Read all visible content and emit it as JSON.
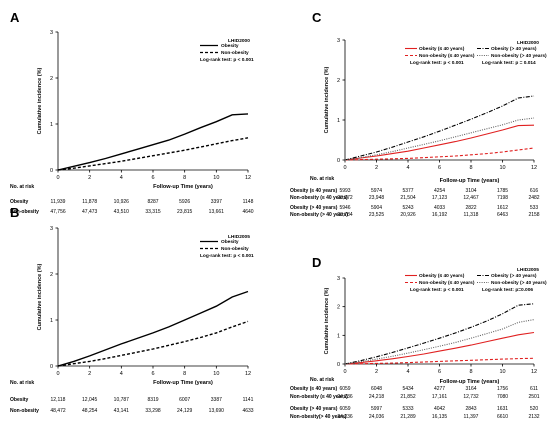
{
  "chart_data": [
    {
      "type": "line",
      "panel": "A",
      "cohort": "LHID2000",
      "xlabel": "Follow-up Time (years)",
      "ylabel": "Cumulative incidence (%)",
      "xlim": [
        0,
        12
      ],
      "ylim": [
        0,
        3
      ],
      "xticks": [
        "0",
        "2",
        "4",
        "6",
        "8",
        "10",
        "12"
      ],
      "yticks": [
        "0",
        "1",
        "2",
        "3"
      ],
      "logrank": "Log-rank test: p < 0.001",
      "risk_header": "No. at risk",
      "series": [
        {
          "name": "Obesity",
          "color": "#000000",
          "style": "solid",
          "x": [
            0,
            1,
            2,
            3,
            4,
            5,
            6,
            7,
            8,
            9,
            10,
            11,
            12
          ],
          "y": [
            0,
            0.08,
            0.16,
            0.25,
            0.35,
            0.45,
            0.55,
            0.65,
            0.78,
            0.92,
            1.05,
            1.2,
            1.22
          ]
        },
        {
          "name": "Non-obesity",
          "color": "#000000",
          "style": "dashed",
          "x": [
            0,
            1,
            2,
            3,
            4,
            5,
            6,
            7,
            8,
            9,
            10,
            11,
            12
          ],
          "y": [
            0,
            0.04,
            0.09,
            0.14,
            0.19,
            0.25,
            0.31,
            0.37,
            0.43,
            0.5,
            0.57,
            0.64,
            0.7
          ]
        }
      ],
      "risk_table": [
        {
          "label": "Obesity",
          "values": [
            "11,939",
            "11,878",
            "10,926",
            "8287",
            "5926",
            "3397",
            "1148"
          ]
        },
        {
          "label": "Non-obesity",
          "values": [
            "47,756",
            "47,473",
            "43,510",
            "33,315",
            "23,815",
            "13,661",
            "4640"
          ]
        }
      ]
    },
    {
      "type": "line",
      "panel": "B",
      "cohort": "LHID2005",
      "xlabel": "Follow-up Time (years)",
      "ylabel": "Cumulative incidence (%)",
      "xlim": [
        0,
        12
      ],
      "ylim": [
        0,
        3
      ],
      "xticks": [
        "0",
        "2",
        "4",
        "6",
        "8",
        "10",
        "12"
      ],
      "yticks": [
        "0",
        "1",
        "2",
        "3"
      ],
      "logrank": "Log-rank test: p < 0.001",
      "risk_header": "No. at risk",
      "series": [
        {
          "name": "Obesity",
          "color": "#000000",
          "style": "solid",
          "x": [
            0,
            1,
            2,
            3,
            4,
            5,
            6,
            7,
            8,
            9,
            10,
            11,
            12
          ],
          "y": [
            0,
            0.1,
            0.22,
            0.35,
            0.48,
            0.6,
            0.72,
            0.85,
            1.0,
            1.15,
            1.3,
            1.5,
            1.62
          ]
        },
        {
          "name": "Non-obesity",
          "color": "#000000",
          "style": "dashed",
          "x": [
            0,
            1,
            2,
            3,
            4,
            5,
            6,
            7,
            8,
            9,
            10,
            11,
            12
          ],
          "y": [
            0,
            0.05,
            0.1,
            0.16,
            0.23,
            0.3,
            0.37,
            0.45,
            0.53,
            0.62,
            0.72,
            0.85,
            0.97
          ]
        }
      ],
      "risk_table": [
        {
          "label": "Obesity",
          "values": [
            "12,118",
            "12,045",
            "10,787",
            "8319",
            "6007",
            "3387",
            "1141"
          ]
        },
        {
          "label": "Non-obesity",
          "values": [
            "48,472",
            "48,254",
            "43,141",
            "33,298",
            "24,129",
            "13,690",
            "4633"
          ]
        }
      ]
    },
    {
      "type": "line",
      "panel": "C",
      "cohort": "LHID2000",
      "xlabel": "Follow-up Time (years)",
      "ylabel": "Cumulative incidence (%)",
      "xlim": [
        0,
        12
      ],
      "ylim": [
        0,
        3
      ],
      "xticks": [
        "0",
        "2",
        "4",
        "6",
        "8",
        "10",
        "12"
      ],
      "yticks": [
        "0",
        "1",
        "2",
        "3"
      ],
      "logrank": [
        "Log-rank test: p < 0.001",
        "Log-rank test: p = 0.014"
      ],
      "risk_header": "No. at risk",
      "series": [
        {
          "name": "Obesity (≤ 40 years)",
          "color": "#e02020",
          "style": "solid",
          "x": [
            0,
            1,
            2,
            3,
            4,
            5,
            6,
            7,
            8,
            9,
            10,
            11,
            12
          ],
          "y": [
            0,
            0.05,
            0.1,
            0.16,
            0.22,
            0.3,
            0.38,
            0.46,
            0.55,
            0.65,
            0.75,
            0.86,
            0.87
          ]
        },
        {
          "name": "Non-obesity (≤ 40 years)",
          "color": "#e02020",
          "style": "dashed",
          "x": [
            0,
            1,
            2,
            3,
            4,
            5,
            6,
            7,
            8,
            9,
            10,
            11,
            12
          ],
          "y": [
            0,
            0.01,
            0.02,
            0.03,
            0.04,
            0.06,
            0.08,
            0.1,
            0.13,
            0.16,
            0.2,
            0.25,
            0.3
          ]
        },
        {
          "name": "Obesity (> 40 years)",
          "color": "#000000",
          "style": "dashdot",
          "x": [
            0,
            1,
            2,
            3,
            4,
            5,
            6,
            7,
            8,
            9,
            10,
            11,
            12
          ],
          "y": [
            0,
            0.1,
            0.2,
            0.32,
            0.45,
            0.58,
            0.72,
            0.87,
            1.02,
            1.18,
            1.35,
            1.55,
            1.6
          ]
        },
        {
          "name": "Non-obesity (> 40 years)",
          "color": "#606060",
          "style": "dotted",
          "x": [
            0,
            1,
            2,
            3,
            4,
            5,
            6,
            7,
            8,
            9,
            10,
            11,
            12
          ],
          "y": [
            0,
            0.06,
            0.13,
            0.21,
            0.3,
            0.39,
            0.48,
            0.58,
            0.68,
            0.78,
            0.88,
            1.0,
            1.05
          ]
        }
      ],
      "risk_table": [
        {
          "label": "Obesity (≤ 40 years)",
          "values": [
            "5993",
            "5974",
            "5377",
            "4254",
            "3104",
            "1785",
            "616"
          ]
        },
        {
          "label": "Non-obesity (≤ 40 years)",
          "values": [
            "23,972",
            "23,948",
            "21,504",
            "17,123",
            "12,467",
            "7198",
            "2482"
          ]
        },
        {
          "label": "Obesity (> 40 years)",
          "values": [
            "5946",
            "5904",
            "5243",
            "4033",
            "2822",
            "1612",
            "533"
          ]
        },
        {
          "label": "Non-obesity (> 40 years)",
          "values": [
            "23,784",
            "23,525",
            "20,926",
            "16,192",
            "11,318",
            "6463",
            "2158"
          ]
        }
      ]
    },
    {
      "type": "line",
      "panel": "D",
      "cohort": "LHID2005",
      "xlabel": "Follow-up Time (years)",
      "ylabel": "Cumulative incidence (%)",
      "xlim": [
        0,
        12
      ],
      "ylim": [
        0,
        3
      ],
      "xticks": [
        "0",
        "2",
        "4",
        "6",
        "8",
        "10",
        "12"
      ],
      "yticks": [
        "0",
        "1",
        "2",
        "3"
      ],
      "logrank": [
        "Log-rank test: p < 0.001",
        "Log-rank test: p=0.006"
      ],
      "risk_header": "No. at risk",
      "series": [
        {
          "name": "Obesity (≤ 40 years)",
          "color": "#e02020",
          "style": "solid",
          "x": [
            0,
            1,
            2,
            3,
            4,
            5,
            6,
            7,
            8,
            9,
            10,
            11,
            12
          ],
          "y": [
            0,
            0.05,
            0.11,
            0.18,
            0.26,
            0.35,
            0.45,
            0.55,
            0.66,
            0.78,
            0.9,
            1.02,
            1.1
          ]
        },
        {
          "name": "Non-obesity (≤ 40 years)",
          "color": "#e02020",
          "style": "dashed",
          "x": [
            0,
            1,
            2,
            3,
            4,
            5,
            6,
            7,
            8,
            9,
            10,
            11,
            12
          ],
          "y": [
            0,
            0.01,
            0.02,
            0.03,
            0.05,
            0.07,
            0.09,
            0.11,
            0.13,
            0.15,
            0.17,
            0.19,
            0.2
          ]
        },
        {
          "name": "Obesity (> 40 years)",
          "color": "#000000",
          "style": "dashdot",
          "x": [
            0,
            1,
            2,
            3,
            4,
            5,
            6,
            7,
            8,
            9,
            10,
            11,
            12
          ],
          "y": [
            0,
            0.12,
            0.25,
            0.4,
            0.56,
            0.73,
            0.9,
            1.08,
            1.28,
            1.5,
            1.75,
            2.05,
            2.1
          ]
        },
        {
          "name": "Non-obesity (> 40 years)",
          "color": "#606060",
          "style": "dotted",
          "x": [
            0,
            1,
            2,
            3,
            4,
            5,
            6,
            7,
            8,
            9,
            10,
            11,
            12
          ],
          "y": [
            0,
            0.08,
            0.17,
            0.27,
            0.38,
            0.5,
            0.62,
            0.75,
            0.9,
            1.06,
            1.22,
            1.45,
            1.55
          ]
        }
      ],
      "risk_table": [
        {
          "label": "Obesity (≤ 40 years)",
          "values": [
            "6059",
            "6048",
            "5434",
            "4277",
            "3164",
            "1756",
            "611"
          ]
        },
        {
          "label": "Non-obesity (≤ 40 years)",
          "values": [
            "24,236",
            "24,218",
            "21,852",
            "17,161",
            "12,732",
            "7080",
            "2501"
          ]
        },
        {
          "label": "Obesity (> 40 years)",
          "values": [
            "6059",
            "5997",
            "5333",
            "4042",
            "2843",
            "1631",
            "520"
          ]
        },
        {
          "label": "Non-obesity(> 40 years)",
          "values": [
            "24,236",
            "24,036",
            "21,289",
            "16,135",
            "11,397",
            "6610",
            "2132"
          ]
        }
      ]
    }
  ]
}
